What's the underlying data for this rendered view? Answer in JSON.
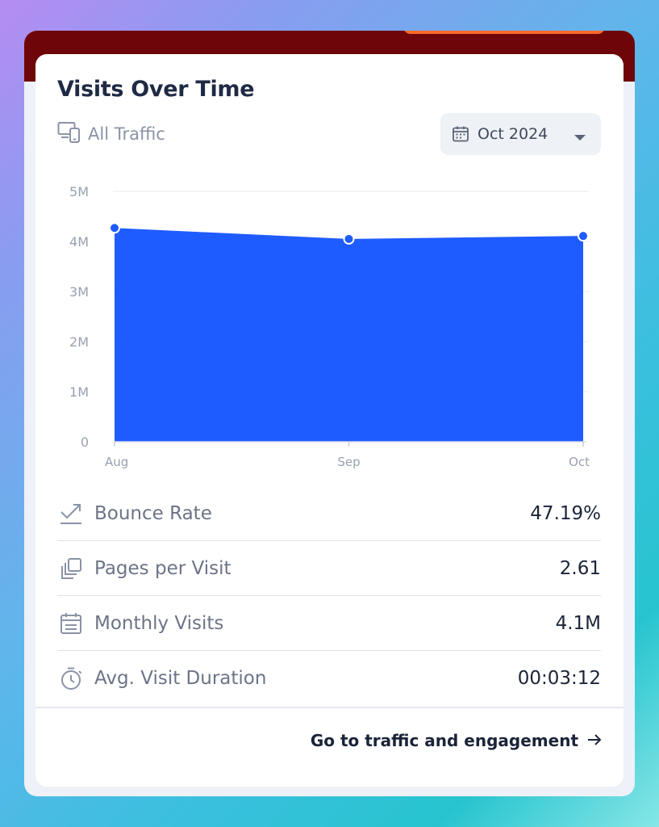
{
  "card": {
    "title": "Visits Over Time",
    "subtitle": "All Traffic",
    "date_selector": "Oct 2024",
    "footer_link": "Go to traffic and engagement"
  },
  "chart_data": {
    "type": "area",
    "categories": [
      "Aug",
      "Sep",
      "Oct"
    ],
    "values": [
      4.27,
      4.05,
      4.11
    ],
    "unit": "M",
    "ylim": [
      0,
      5
    ],
    "y_ticks": [
      "0",
      "1M",
      "2M",
      "3M",
      "4M",
      "5M"
    ],
    "grid": true,
    "color": "#1f5cff"
  },
  "metrics": [
    {
      "label": "Bounce Rate",
      "value": "47.19%",
      "icon": "trend-up-icon"
    },
    {
      "label": "Pages per Visit",
      "value": "2.61",
      "icon": "stacked-pages-icon"
    },
    {
      "label": "Monthly Visits",
      "value": "4.1M",
      "icon": "calendar-icon"
    },
    {
      "label": "Avg. Visit Duration",
      "value": "00:03:12",
      "icon": "stopwatch-icon"
    }
  ],
  "colors": {
    "accent": "#1f5cff",
    "header_band": "#6e0609",
    "text_dark": "#1b2438",
    "text_muted": "#6c7486"
  }
}
